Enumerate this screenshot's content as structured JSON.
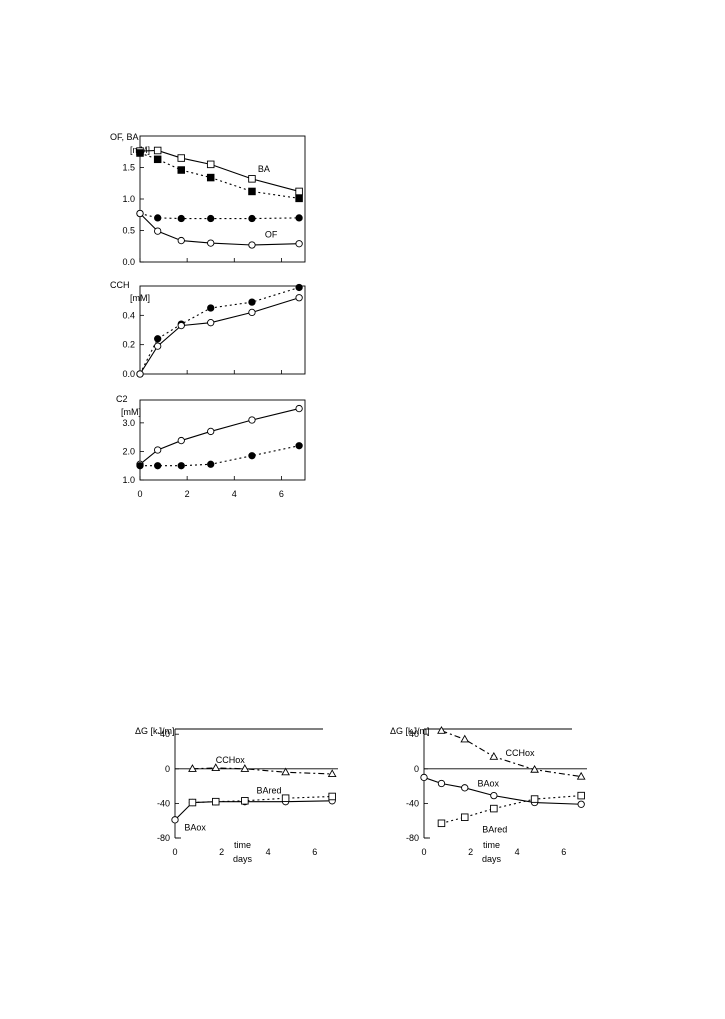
{
  "chart_data": [
    {
      "id": "top",
      "type": "line",
      "ylabel": "OF, BA",
      "yunit": "[mM]",
      "xlim": [
        0,
        7
      ],
      "ylim": [
        0,
        2.0
      ],
      "yticks": [
        "0.0",
        "0.5",
        "1.0",
        "1.5"
      ],
      "yticks_values": [
        0,
        0.5,
        1.0,
        1.5
      ],
      "xticks_values": [
        0,
        2,
        4,
        6
      ],
      "series": [
        {
          "name": "BA",
          "marker": "open-square",
          "dash": "solid",
          "x": [
            0,
            0.75,
            1.75,
            3,
            4.75,
            6.75
          ],
          "y": [
            1.76,
            1.77,
            1.65,
            1.55,
            1.32,
            1.12
          ]
        },
        {
          "name": "",
          "marker": "filled-square",
          "dash": "dotted",
          "x": [
            0,
            0.75,
            1.75,
            3,
            4.75,
            6.75
          ],
          "y": [
            1.73,
            1.63,
            1.46,
            1.34,
            1.12,
            1.01
          ]
        },
        {
          "name": "",
          "marker": "filled-circle",
          "dash": "dotted",
          "x": [
            0,
            0.75,
            1.75,
            3,
            4.75,
            6.75
          ],
          "y": [
            0.77,
            0.7,
            0.69,
            0.69,
            0.69,
            0.7
          ]
        },
        {
          "name": "OF",
          "marker": "open-circle",
          "dash": "solid",
          "x": [
            0,
            0.75,
            1.75,
            3,
            4.75,
            6.75
          ],
          "y": [
            0.77,
            0.49,
            0.34,
            0.3,
            0.27,
            0.29
          ]
        }
      ],
      "labels": [
        {
          "text": "BA",
          "x": 5.0,
          "y": 1.48
        },
        {
          "text": "OF",
          "x": 5.3,
          "y": 0.44
        }
      ]
    },
    {
      "id": "middle",
      "type": "line",
      "ylabel": "CCH",
      "yunit": "[mM]",
      "xlim": [
        0,
        7
      ],
      "ylim": [
        0,
        0.6
      ],
      "yticks": [
        "0.0",
        "0.2",
        "0.4"
      ],
      "yticks_values": [
        0,
        0.2,
        0.4
      ],
      "xticks_values": [
        0,
        2,
        4,
        6
      ],
      "series": [
        {
          "name": "",
          "marker": "filled-circle",
          "dash": "dotted",
          "x": [
            0,
            0.75,
            1.75,
            3,
            4.75,
            6.75
          ],
          "y": [
            0.0,
            0.24,
            0.34,
            0.45,
            0.49,
            0.59
          ]
        },
        {
          "name": "",
          "marker": "open-circle",
          "dash": "solid",
          "x": [
            0,
            0.75,
            1.75,
            3,
            4.75,
            6.75
          ],
          "y": [
            0.0,
            0.19,
            0.33,
            0.35,
            0.42,
            0.52
          ]
        }
      ],
      "labels": []
    },
    {
      "id": "bottom",
      "type": "line",
      "ylabel": "C2",
      "yunit": "[mM]",
      "xlim": [
        0,
        7
      ],
      "ylim": [
        1.0,
        3.8
      ],
      "yticks": [
        "1.0",
        "2.0",
        "3.0"
      ],
      "yticks_values": [
        1.0,
        2.0,
        3.0
      ],
      "xticks": [
        "0",
        "2",
        "4",
        "6"
      ],
      "xticks_values": [
        0,
        2,
        4,
        6
      ],
      "series": [
        {
          "name": "",
          "marker": "open-circle",
          "dash": "solid",
          "x": [
            0,
            0.75,
            1.75,
            3,
            4.75,
            6.75
          ],
          "y": [
            1.55,
            2.05,
            2.38,
            2.7,
            3.1,
            3.5
          ]
        },
        {
          "name": "",
          "marker": "filled-circle",
          "dash": "dotted",
          "x": [
            0,
            0.75,
            1.75,
            3,
            4.75,
            6.75
          ],
          "y": [
            1.5,
            1.5,
            1.5,
            1.55,
            1.85,
            2.2
          ]
        }
      ],
      "labels": []
    },
    {
      "id": "bottom-left",
      "type": "line",
      "ylabel": "ΔG [kJ/m]",
      "xlim": [
        0,
        7
      ],
      "ylim": [
        -80,
        46
      ],
      "yticks": [
        "40",
        "0",
        "-40",
        "-80"
      ],
      "yticks_values": [
        40,
        0,
        -40,
        -80
      ],
      "xticks": [
        "0",
        "2",
        "4",
        "6"
      ],
      "xticks_values": [
        0,
        2,
        4,
        6
      ],
      "xlabel": [
        "time",
        "days"
      ],
      "series": [
        {
          "name": "CCHox",
          "marker": "open-triangle",
          "dash": "dashdot",
          "x": [
            0.75,
            1.75,
            3,
            4.75,
            6.75
          ],
          "y": [
            0,
            1,
            0,
            -4,
            -6
          ]
        },
        {
          "name": "BAox",
          "marker": "open-circle",
          "dash": "solid",
          "x": [
            0,
            0.75,
            1.75,
            3,
            4.75,
            6.75
          ],
          "y": [
            -59,
            -39,
            -38,
            -38,
            -38,
            -37
          ]
        },
        {
          "name": "BAred",
          "marker": "open-square",
          "dash": "dotted",
          "x": [
            0.75,
            1.75,
            3,
            4.75,
            6.75
          ],
          "y": [
            -39,
            -38,
            -37,
            -34,
            -32
          ]
        }
      ],
      "labels": [
        {
          "text": "CCHox",
          "x": 1.75,
          "y": 10
        },
        {
          "text": "BAred",
          "x": 3.5,
          "y": -25
        },
        {
          "text": "BAox",
          "x": 0.4,
          "y": -68
        }
      ]
    },
    {
      "id": "bottom-right",
      "type": "line",
      "ylabel": "ΔG [kJ/m]",
      "xlim": [
        0,
        7
      ],
      "ylim": [
        -80,
        46
      ],
      "yticks": [
        "40",
        "0",
        "-40",
        "-80"
      ],
      "yticks_values": [
        40,
        0,
        -40,
        -80
      ],
      "xticks": [
        "0",
        "2",
        "4",
        "6"
      ],
      "xticks_values": [
        0,
        2,
        4,
        6
      ],
      "xlabel": [
        "time",
        "days"
      ],
      "series": [
        {
          "name": "CCHox",
          "marker": "open-triangle",
          "dash": "dashdot",
          "x": [
            0.75,
            1.75,
            3,
            4.75,
            6.75
          ],
          "y": [
            44,
            34,
            14,
            -1,
            -9
          ]
        },
        {
          "name": "BAox",
          "marker": "open-circle",
          "dash": "solid",
          "x": [
            0,
            0.75,
            1.75,
            3,
            4.75,
            6.75
          ],
          "y": [
            -10,
            -17,
            -22,
            -31,
            -39,
            -41
          ]
        },
        {
          "name": "BAred",
          "marker": "open-square",
          "dash": "dotted",
          "x": [
            0.75,
            1.75,
            3,
            4.75,
            6.75
          ],
          "y": [
            -63,
            -56,
            -46,
            -35,
            -31
          ]
        }
      ],
      "labels": [
        {
          "text": "CCHox",
          "x": 3.5,
          "y": 18
        },
        {
          "text": "BAox",
          "x": 2.3,
          "y": -17
        },
        {
          "text": "BAred",
          "x": 2.5,
          "y": -70
        }
      ]
    }
  ]
}
